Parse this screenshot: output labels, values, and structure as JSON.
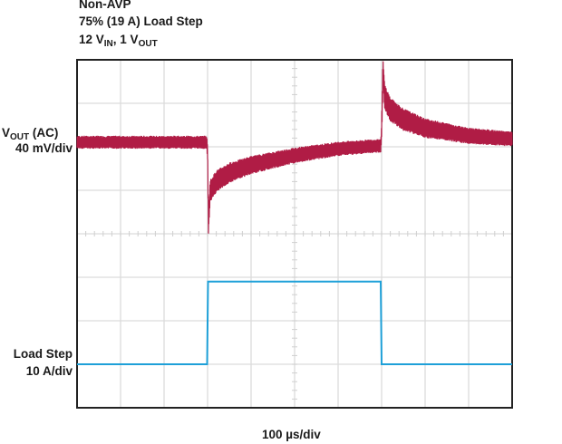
{
  "chart_data": {
    "type": "line",
    "title_lines": [
      "Non-AVP",
      "75% (19 A) Load Step"
    ],
    "conditions": {
      "vin_value": "12 V",
      "vin_sub": "IN",
      "vout_value": "1 V",
      "vout_sub": "OUT"
    },
    "xlabel": "100 µs/div",
    "x_units": "µs",
    "xlim": [
      0,
      1000
    ],
    "grid": true,
    "divisions": {
      "x": 10,
      "y": 8
    },
    "series": [
      {
        "name": "VOUT (AC)",
        "label_main": "V",
        "label_sub": "OUT",
        "label_suffix": " (AC)",
        "scale": "40 mV/div",
        "units": "mV",
        "color": "#b01c45",
        "ripple_pp_mV": 12,
        "points": [
          [
            0,
            0
          ],
          [
            298,
            0
          ],
          [
            300,
            -10
          ],
          [
            302,
            -74
          ],
          [
            306,
            -45
          ],
          [
            320,
            -36
          ],
          [
            350,
            -28
          ],
          [
            400,
            -21
          ],
          [
            500,
            -12
          ],
          [
            600,
            -6
          ],
          [
            698,
            -3
          ],
          [
            700,
            10
          ],
          [
            703,
            66
          ],
          [
            707,
            42
          ],
          [
            720,
            30
          ],
          [
            750,
            21
          ],
          [
            800,
            13
          ],
          [
            900,
            6
          ],
          [
            1000,
            3
          ]
        ]
      },
      {
        "name": "Load Step",
        "scale": "10 A/div",
        "units": "A",
        "color": "#1ea0d8",
        "points": [
          [
            0,
            0
          ],
          [
            299,
            0
          ],
          [
            301,
            19
          ],
          [
            698,
            19
          ],
          [
            700,
            0
          ],
          [
            1000,
            0
          ]
        ]
      }
    ]
  }
}
